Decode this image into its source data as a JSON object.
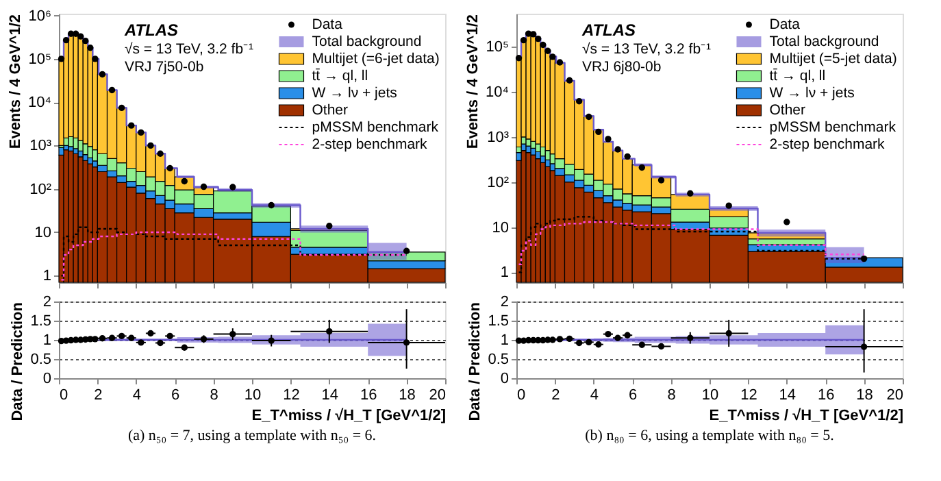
{
  "chart_data": [
    {
      "type": "bar",
      "stacked": true,
      "log": true,
      "legend": "top right",
      "tick_labels": "y",
      "ylabel": "Events / 4 GeV^1/2",
      "x": [
        0.125,
        0.375,
        0.625,
        0.875,
        1.125,
        1.375,
        1.625,
        1.875,
        2.25,
        2.75,
        3.25,
        3.75,
        4.25,
        4.75,
        5.25,
        5.75,
        6.5,
        7.5,
        9,
        11,
        14,
        18
      ],
      "xlim": [
        0,
        20
      ],
      "xticks": [
        0,
        2,
        4,
        6,
        8,
        10,
        12,
        14,
        16,
        18,
        20
      ],
      "ylim": [
        0.7,
        1100000
      ],
      "yticks": [
        1,
        10,
        {
          "value": 100,
          "label": "10²"
        },
        {
          "value": 1000,
          "label": "10³"
        },
        {
          "value": 10000,
          "label": "10⁴"
        },
        {
          "value": 100000,
          "label": "10⁵"
        },
        {
          "value": 1000000,
          "label": "10⁶"
        }
      ],
      "annotations": [
        "ATLAS",
        "√s = 13 TeV, 3.2 fb⁻¹",
        "VRJ 7j50-0b"
      ],
      "series": [
        {
          "name": "Other",
          "color": "#a03000",
          "values": [
            600,
            800,
            750,
            650,
            550,
            450,
            380,
            320,
            250,
            190,
            140,
            110,
            80,
            60,
            45,
            35,
            28,
            22,
            20,
            8,
            3.1,
            1.45
          ]
        },
        {
          "name": "W → lν + jets",
          "color": "#2a8fe8",
          "values": [
            300,
            200,
            200,
            200,
            200,
            170,
            140,
            120,
            100,
            70,
            60,
            40,
            40,
            30,
            25,
            20,
            17,
            13,
            8,
            9,
            1.4,
            0.75
          ]
        },
        {
          "name": "tt̄ → ql, ll",
          "color": "#90f090",
          "values": [
            100,
            500,
            650,
            650,
            550,
            480,
            430,
            360,
            300,
            240,
            200,
            150,
            130,
            100,
            80,
            65,
            50,
            40,
            62,
            23,
            6.5,
            1.3
          ]
        },
        {
          "name": "Multijet (=6-jet data)",
          "color": "#ffc533",
          "values": [
            99000,
            268500,
            378400,
            378500,
            328700,
            258900,
            179050,
            99200,
            43350,
            18500,
            7000,
            2600,
            1750,
            810,
            500,
            180,
            95,
            35,
            null,
            null,
            1,
            null
          ]
        },
        {
          "name": "Total background",
          "type": "step",
          "color": "#6a5acd",
          "x": [
            0.125,
            0.375,
            0.625,
            0.875,
            1.125,
            1.375,
            1.625,
            1.875,
            2.25,
            2.75,
            3.25,
            3.75,
            4.25,
            4.75,
            5.25,
            5.75,
            6.5,
            7.5,
            9,
            11,
            14,
            18
          ],
          "values": [
            100000,
            270000,
            380000,
            380000,
            330000,
            260000,
            180000,
            100000,
            44000,
            19000,
            7400,
            2900,
            2000,
            1000,
            650,
            300,
            190,
            110,
            95,
            42,
            12,
            3.5
          ],
          "lower": [
            97000,
            262000,
            369000,
            369000,
            320000,
            252000,
            175000,
            97000,
            42700,
            18400,
            7180,
            2810,
            1940,
            970,
            630,
            291,
            177,
            102,
            87,
            37,
            9.8,
            2.3
          ],
          "upper": [
            103000,
            278000,
            391000,
            391000,
            340000,
            268000,
            185000,
            103000,
            45300,
            19600,
            7620,
            2990,
            2060,
            1030,
            670,
            309,
            203,
            118,
            103,
            47,
            14.2,
            5.7
          ]
        },
        {
          "name": "pMSSM benchmark",
          "type": "step",
          "line_style": "dotted",
          "color": "#000000",
          "x": [
            0.125,
            0.375,
            0.625,
            0.875,
            1.125,
            1.375,
            1.625,
            1.875,
            2.25,
            2.75,
            3.25,
            3.75,
            4.25,
            4.75,
            5.25,
            5.75,
            6.5,
            7.5,
            9,
            11,
            14,
            18
          ],
          "values": [
            1,
            8,
            6,
            9,
            13,
            13,
            10,
            10,
            12,
            12,
            10,
            9,
            9,
            8,
            8,
            7,
            7,
            7,
            5,
            5,
            3,
            3
          ]
        },
        {
          "name": "2-step benchmark",
          "type": "step",
          "line_style": "dotted",
          "color": "#ff44dd",
          "x": [
            0.125,
            0.375,
            0.625,
            0.875,
            1.125,
            1.375,
            1.625,
            1.875,
            2.25,
            2.75,
            3.25,
            3.75,
            4.25,
            4.75,
            5.25,
            5.75,
            6.5,
            7.5,
            9,
            11,
            14,
            18
          ],
          "values": [
            0.8,
            3,
            4,
            5,
            5,
            6,
            6,
            7,
            8,
            8,
            9,
            9,
            10,
            10,
            10,
            10,
            9,
            9,
            7,
            7,
            3,
            3
          ]
        },
        {
          "name": "Data",
          "type": "scatter",
          "marker": "circle",
          "color": "#000000",
          "x": [
            0.125,
            0.375,
            0.625,
            0.875,
            1.125,
            1.375,
            1.625,
            1.875,
            2.25,
            2.75,
            3.25,
            3.75,
            4.25,
            4.75,
            5.25,
            5.75,
            6.5,
            7.5,
            9,
            11,
            14,
            18
          ],
          "values": [
            100000,
            270000,
            380000,
            380000,
            330000,
            260000,
            180000,
            100000,
            44000,
            19000,
            7400,
            2900,
            2000,
            1000,
            650,
            300,
            150,
            112,
            110,
            42,
            14,
            3.7
          ]
        }
      ]
    },
    {
      "type": "scatter",
      "grid": "y",
      "ylabel": "Data / Prediction",
      "xlabel": "E_T^miss / √H_T [GeV^1/2]",
      "xlim": [
        0,
        20
      ],
      "xticks": [
        0,
        2,
        4,
        6,
        8,
        10,
        12,
        14,
        16,
        18,
        20
      ],
      "ylim": [
        0,
        2
      ],
      "yticks": [
        0,
        0.5,
        1,
        1.5,
        2
      ],
      "annotations": [
        "(a) n₅₀ = 7, using a template with n₅₀ = 6."
      ],
      "series": [
        {
          "type": "step",
          "color": "#6a5acd",
          "x": [
            0.125,
            0.375,
            0.625,
            0.875,
            1.125,
            1.375,
            1.625,
            1.875,
            2.25,
            2.75,
            3.25,
            3.75,
            4.25,
            4.75,
            5.25,
            5.75,
            6.5,
            7.5,
            9,
            11,
            14,
            18
          ],
          "values": [
            null,
            null,
            null,
            null,
            null,
            null,
            null,
            null,
            1,
            1,
            1,
            1,
            1,
            1,
            1,
            1,
            1,
            1,
            1,
            1,
            1,
            1
          ],
          "lower": [
            0.97,
            0.97,
            0.97,
            0.97,
            0.97,
            0.97,
            0.97,
            0.97,
            0.97,
            0.97,
            0.97,
            0.97,
            0.97,
            0.97,
            0.97,
            0.97,
            0.93,
            0.93,
            0.92,
            0.88,
            0.82,
            0.58
          ],
          "upper": [
            1.03,
            1.03,
            1.03,
            1.03,
            1.03,
            1.03,
            1.03,
            1.03,
            1.03,
            1.03,
            1.03,
            1.03,
            1.03,
            1.03,
            1.03,
            1.03,
            1.07,
            1.07,
            1.08,
            1.12,
            1.18,
            1.42
          ]
        },
        {
          "type": "scatter",
          "marker": "circle",
          "color": "#000000",
          "x": [
            0.125,
            0.375,
            0.625,
            0.875,
            1.125,
            1.375,
            1.625,
            1.875,
            2.25,
            2.75,
            3.25,
            3.75,
            4.25,
            4.75,
            5.25,
            5.75,
            6.5,
            7.5,
            9,
            11,
            14,
            18
          ],
          "values": [
            0.97,
            0.98,
            0.99,
            1.0,
            1.0,
            1.01,
            1.02,
            1.02,
            1.04,
            1.05,
            1.1,
            1.05,
            0.93,
            1.17,
            0.92,
            1.1,
            0.8,
            1.02,
            1.15,
            0.98,
            1.22,
            0.93
          ],
          "errors": [
            null,
            null,
            null,
            null,
            null,
            null,
            null,
            null,
            null,
            null,
            null,
            null,
            0.04,
            0.05,
            0.06,
            0.07,
            0.05,
            0.1,
            0.15,
            0.15,
            0.3,
            [
              0.25,
              1.8
            ]
          ],
          "xerrors": [
            0.125,
            0.125,
            0.125,
            0.125,
            0.125,
            0.125,
            0.125,
            0.125,
            0.25,
            0.25,
            0.25,
            0.25,
            0.25,
            0.25,
            0.25,
            0.25,
            0.5,
            0.5,
            1,
            1,
            2,
            2
          ]
        }
      ]
    },
    {
      "type": "bar",
      "stacked": true,
      "log": true,
      "legend": "top right",
      "tick_labels": "y",
      "ylabel": "Events / 4 GeV^1/2",
      "x": [
        0.125,
        0.375,
        0.625,
        0.875,
        1.125,
        1.375,
        1.625,
        1.875,
        2.25,
        2.75,
        3.25,
        3.75,
        4.25,
        4.75,
        5.25,
        5.75,
        6.5,
        7.5,
        9,
        11,
        14,
        18
      ],
      "xlim": [
        0,
        20
      ],
      "xticks": [
        0,
        2,
        4,
        6,
        8,
        10,
        12,
        14,
        16,
        18,
        20
      ],
      "ylim": [
        0.6,
        540000
      ],
      "yticks": [
        1,
        10,
        {
          "value": 100,
          "label": "10²"
        },
        {
          "value": 1000,
          "label": "10³"
        },
        {
          "value": 10000,
          "label": "10⁴"
        },
        {
          "value": 100000,
          "label": "10⁵"
        }
      ],
      "annotations": [
        "ATLAS",
        "√s = 13 TeV, 3.2 fb⁻¹",
        "VRJ 6j80-0b"
      ],
      "series": [
        {
          "name": "Other",
          "color": "#a03000",
          "values": [
            300,
            500,
            450,
            400,
            330,
            270,
            220,
            180,
            140,
            100,
            75,
            60,
            45,
            35,
            28,
            24,
            22,
            20,
            9,
            6.6,
            2.9,
            1.3
          ]
        },
        {
          "name": "W → lν + jets",
          "color": "#2a8fe8",
          "values": [
            150,
            200,
            180,
            160,
            140,
            110,
            90,
            75,
            60,
            45,
            35,
            25,
            20,
            15,
            12,
            10,
            9,
            8,
            4,
            3,
            1.2,
            0.8
          ]
        },
        {
          "name": "tt̄ → ql, ll",
          "color": "#90f090",
          "values": [
            150,
            300,
            270,
            240,
            230,
            220,
            190,
            165,
            130,
            105,
            80,
            65,
            45,
            40,
            30,
            21,
            19,
            17,
            12,
            7.4,
            1.4,
            null
          ]
        },
        {
          "name": "Multijet (=5-jet data)",
          "color": "#ffc533",
          "values": [
            56400,
            141000,
            196100,
            191200,
            151300,
            111400,
            81500,
            60580,
            43670,
            17250,
            6510,
            2750,
            1340,
            690,
            430,
            275,
            190,
            85,
            28,
            9,
            2,
            null
          ]
        },
        {
          "name": "Total background",
          "type": "step",
          "color": "#6a5acd",
          "x": [
            0.125,
            0.375,
            0.625,
            0.875,
            1.125,
            1.375,
            1.625,
            1.875,
            2.25,
            2.75,
            3.25,
            3.75,
            4.25,
            4.75,
            5.25,
            5.75,
            6.5,
            7.5,
            9,
            11,
            14,
            18
          ],
          "values": [
            57000,
            142000,
            197000,
            192000,
            152000,
            112000,
            82000,
            61000,
            44000,
            17500,
            6700,
            2900,
            1450,
            780,
            500,
            330,
            240,
            130,
            53,
            26,
            7.5,
            2.1
          ],
          "lower": [
            55300,
            138000,
            191000,
            186000,
            147000,
            109000,
            79500,
            59200,
            42700,
            17000,
            6500,
            2810,
            1410,
            757,
            485,
            320,
            221,
            120,
            48,
            23,
            6.2,
            1.6
          ],
          "upper": [
            58700,
            146000,
            203000,
            198000,
            157000,
            115000,
            84500,
            62800,
            45300,
            18000,
            6900,
            2990,
            1490,
            803,
            515,
            340,
            259,
            140,
            58,
            29,
            8.9,
            3.6
          ]
        },
        {
          "name": "pMSSM benchmark",
          "type": "step",
          "line_style": "dotted",
          "color": "#000000",
          "x": [
            0.125,
            0.375,
            0.625,
            0.875,
            1.125,
            1.375,
            1.625,
            1.875,
            2.25,
            2.75,
            3.25,
            3.75,
            4.25,
            4.75,
            5.25,
            5.75,
            6.5,
            7.5,
            9,
            11,
            14,
            18
          ],
          "values": [
            1,
            4,
            6,
            10,
            12,
            10,
            12,
            14,
            15,
            15,
            17,
            17,
            14,
            13,
            12,
            11,
            9,
            9,
            8,
            8,
            3,
            2
          ]
        },
        {
          "name": "2-step benchmark",
          "type": "step",
          "line_style": "dotted",
          "color": "#ff44dd",
          "x": [
            0.125,
            0.375,
            0.625,
            0.875,
            1.125,
            1.375,
            1.625,
            1.875,
            2.25,
            2.75,
            3.25,
            3.75,
            4.25,
            4.75,
            5.25,
            5.75,
            6.5,
            7.5,
            9,
            11,
            14,
            18
          ],
          "values": [
            1.5,
            3,
            5,
            4,
            7,
            9,
            10,
            11,
            11,
            12,
            12,
            13,
            13,
            13,
            12,
            12,
            11,
            11,
            9,
            9,
            4,
            2.5
          ]
        },
        {
          "name": "Data",
          "type": "scatter",
          "marker": "circle",
          "color": "#000000",
          "x": [
            0.125,
            0.375,
            0.625,
            0.875,
            1.125,
            1.375,
            1.625,
            1.875,
            2.25,
            2.75,
            3.25,
            3.75,
            4.25,
            4.75,
            5.25,
            5.75,
            6.5,
            7.5,
            9,
            11,
            14,
            18
          ],
          "values": [
            56000,
            140000,
            195000,
            190000,
            150000,
            110000,
            81000,
            60000,
            45000,
            18000,
            6200,
            2800,
            1300,
            900,
            530,
            370,
            210,
            110,
            56,
            30,
            13,
            2
          ]
        }
      ]
    },
    {
      "type": "scatter",
      "grid": "y",
      "ylabel": "Data / Prediction",
      "xlabel": "E_T^miss / √H_T [GeV^1/2]",
      "xlim": [
        0,
        20
      ],
      "xticks": [
        0,
        2,
        4,
        6,
        8,
        10,
        12,
        14,
        16,
        18,
        20
      ],
      "ylim": [
        0,
        2
      ],
      "yticks": [
        0,
        0.5,
        1,
        1.5,
        2
      ],
      "annotations": [
        "(b) n₈₀ = 6, using a template with n₈₀ = 5."
      ],
      "series": [
        {
          "type": "step",
          "color": "#6a5acd",
          "x": [
            0.125,
            0.375,
            0.625,
            0.875,
            1.125,
            1.375,
            1.625,
            1.875,
            2.25,
            2.75,
            3.25,
            3.75,
            4.25,
            4.75,
            5.25,
            5.75,
            6.5,
            7.5,
            9,
            11,
            14,
            18
          ],
          "values": [
            null,
            null,
            null,
            null,
            null,
            null,
            null,
            null,
            1,
            1,
            1,
            1,
            1,
            1,
            1,
            1,
            1,
            1,
            1,
            1,
            1,
            1
          ],
          "lower": [
            0.97,
            0.97,
            0.97,
            0.97,
            0.97,
            0.97,
            0.97,
            0.97,
            0.97,
            0.97,
            0.97,
            0.97,
            0.96,
            0.95,
            0.94,
            0.94,
            0.92,
            0.92,
            0.9,
            0.88,
            0.82,
            0.62
          ],
          "upper": [
            1.03,
            1.03,
            1.03,
            1.03,
            1.03,
            1.03,
            1.03,
            1.03,
            1.03,
            1.03,
            1.03,
            1.03,
            1.04,
            1.05,
            1.06,
            1.06,
            1.08,
            1.08,
            1.1,
            1.12,
            1.18,
            1.38
          ]
        },
        {
          "type": "scatter",
          "marker": "circle",
          "color": "#000000",
          "x": [
            0.125,
            0.375,
            0.625,
            0.875,
            1.125,
            1.375,
            1.625,
            1.875,
            2.25,
            2.75,
            3.25,
            3.75,
            4.25,
            4.75,
            5.25,
            5.75,
            6.5,
            7.5,
            9,
            11,
            14,
            18
          ],
          "values": [
            0.98,
            0.98,
            0.99,
            0.99,
            0.99,
            0.99,
            1.0,
            1.0,
            1.02,
            1.03,
            0.92,
            0.94,
            0.88,
            1.15,
            1.05,
            1.12,
            0.87,
            0.83,
            1.05,
            1.17,
            null,
            0.82
          ],
          "errors": [
            null,
            null,
            null,
            null,
            null,
            null,
            null,
            null,
            null,
            null,
            null,
            null,
            0.05,
            0.06,
            0.07,
            0.08,
            0.07,
            0.08,
            0.15,
            0.35,
            null,
            [
              0.15,
              1.8
            ]
          ],
          "xerrors": [
            0.125,
            0.125,
            0.125,
            0.125,
            0.125,
            0.125,
            0.125,
            0.125,
            0.25,
            0.25,
            0.25,
            0.25,
            0.25,
            0.25,
            0.25,
            0.25,
            0.5,
            0.5,
            1,
            1,
            null,
            2
          ]
        }
      ]
    }
  ]
}
